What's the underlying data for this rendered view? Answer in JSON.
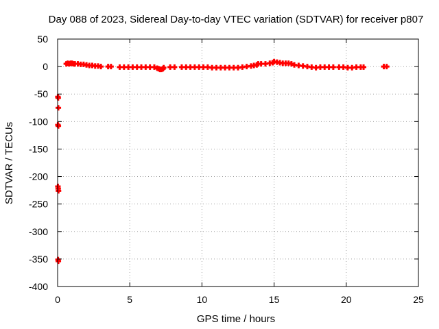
{
  "chart_data": {
    "type": "scatter",
    "title": "Day 088 of 2023, Sidereal Day-to-day VTEC variation (SDTVAR) for receiver p807",
    "xlabel": "GPS time / hours",
    "ylabel": "SDTVAR / TECUs",
    "xlim": [
      0,
      25
    ],
    "ylim": [
      -400,
      50
    ],
    "xticks": [
      0,
      5,
      10,
      15,
      20,
      25
    ],
    "yticks": [
      50,
      0,
      -50,
      -100,
      -150,
      -200,
      -250,
      -300,
      -350,
      -400
    ],
    "grid": true,
    "marker_color": "#ff0000",
    "series": [
      {
        "name": "SDTVAR",
        "points": [
          [
            0.02,
            -55
          ],
          [
            0.04,
            -57
          ],
          [
            0.05,
            -75
          ],
          [
            0.02,
            -106
          ],
          [
            0.05,
            -108
          ],
          [
            0.02,
            -218
          ],
          [
            0.04,
            -222
          ],
          [
            0.06,
            -226
          ],
          [
            0.03,
            -351
          ],
          [
            0.05,
            -354
          ],
          [
            0.6,
            5
          ],
          [
            0.7,
            6
          ],
          [
            0.8,
            5
          ],
          [
            0.9,
            6
          ],
          [
            1.0,
            6
          ],
          [
            1.1,
            5
          ],
          [
            1.2,
            5
          ],
          [
            1.4,
            5
          ],
          [
            1.6,
            4
          ],
          [
            1.8,
            4
          ],
          [
            2.0,
            3
          ],
          [
            2.2,
            2
          ],
          [
            2.4,
            2
          ],
          [
            2.6,
            1
          ],
          [
            2.8,
            1
          ],
          [
            3.0,
            0
          ],
          [
            3.5,
            0
          ],
          [
            3.7,
            0
          ],
          [
            4.3,
            -1
          ],
          [
            4.6,
            -1
          ],
          [
            4.9,
            -1
          ],
          [
            5.2,
            -1
          ],
          [
            5.5,
            -1
          ],
          [
            5.8,
            -1
          ],
          [
            6.1,
            -1
          ],
          [
            6.4,
            -1
          ],
          [
            6.7,
            -1
          ],
          [
            6.9,
            -3
          ],
          [
            7.0,
            -4
          ],
          [
            7.1,
            -5
          ],
          [
            7.2,
            -5
          ],
          [
            7.3,
            -4
          ],
          [
            7.35,
            -2
          ],
          [
            7.8,
            -1
          ],
          [
            8.1,
            -1
          ],
          [
            8.6,
            -1
          ],
          [
            8.9,
            -1
          ],
          [
            9.2,
            -1
          ],
          [
            9.5,
            -1
          ],
          [
            9.8,
            -1
          ],
          [
            10.1,
            -1
          ],
          [
            10.4,
            -1
          ],
          [
            10.7,
            -2
          ],
          [
            11.0,
            -2
          ],
          [
            11.3,
            -2
          ],
          [
            11.6,
            -2
          ],
          [
            11.9,
            -2
          ],
          [
            12.2,
            -2
          ],
          [
            12.5,
            -2
          ],
          [
            12.8,
            -1
          ],
          [
            13.1,
            0
          ],
          [
            13.4,
            1
          ],
          [
            13.6,
            2
          ],
          [
            13.8,
            3
          ],
          [
            13.9,
            5
          ],
          [
            14.1,
            5
          ],
          [
            14.4,
            5
          ],
          [
            14.7,
            6
          ],
          [
            14.9,
            7
          ],
          [
            15.0,
            9
          ],
          [
            15.2,
            8
          ],
          [
            15.4,
            7
          ],
          [
            15.6,
            6
          ],
          [
            15.8,
            6
          ],
          [
            16.0,
            6
          ],
          [
            16.2,
            5
          ],
          [
            16.4,
            3
          ],
          [
            16.7,
            2
          ],
          [
            17.0,
            1
          ],
          [
            17.3,
            0
          ],
          [
            17.6,
            -1
          ],
          [
            17.9,
            -2
          ],
          [
            18.2,
            -1
          ],
          [
            18.5,
            -1
          ],
          [
            18.8,
            -1
          ],
          [
            19.1,
            -1
          ],
          [
            19.5,
            -1
          ],
          [
            19.8,
            -1
          ],
          [
            20.1,
            -2
          ],
          [
            20.4,
            -2
          ],
          [
            20.7,
            -1
          ],
          [
            21.0,
            -1
          ],
          [
            21.2,
            -1
          ],
          [
            22.6,
            0
          ],
          [
            22.8,
            0
          ]
        ]
      }
    ]
  }
}
